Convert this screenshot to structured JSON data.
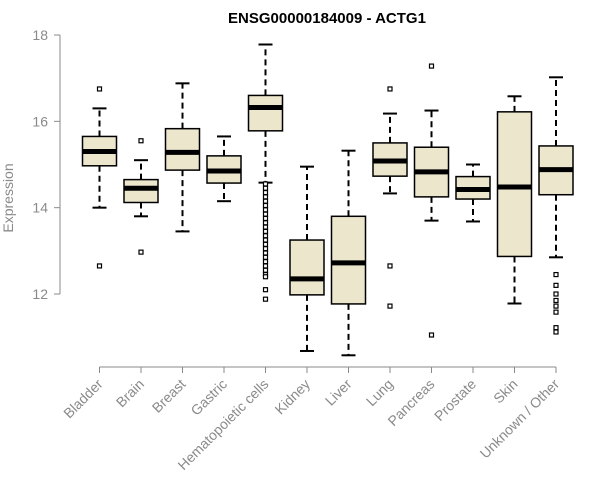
{
  "chart_data": {
    "type": "boxplot",
    "title": "ENSG00000184009 - ACTG1",
    "ylabel": "Expression",
    "xlabel": "",
    "ylim": [
      10.5,
      18
    ],
    "yticks": [
      12,
      14,
      16,
      18
    ],
    "colors": {
      "box_fill": "#ece6cd",
      "box_stroke": "#000000",
      "median": "#000000",
      "axis": "#8a8a8a",
      "tick_text": "#8a8a8a"
    },
    "categories": [
      "Bladder",
      "Brain",
      "Breast",
      "Gastric",
      "Hematopoietic cells",
      "Kidney",
      "Liver",
      "Lung",
      "Pancreas",
      "Prostate",
      "Skin",
      "Unknown / Other"
    ],
    "boxes": [
      {
        "name": "Bladder",
        "whisker_low": 14.0,
        "q1": 14.97,
        "median": 15.3,
        "q3": 15.65,
        "whisker_high": 16.3,
        "outliers": [
          16.75,
          12.65
        ]
      },
      {
        "name": "Brain",
        "whisker_low": 13.8,
        "q1": 14.12,
        "median": 14.45,
        "q3": 14.65,
        "whisker_high": 15.1,
        "outliers": [
          15.55,
          12.97
        ]
      },
      {
        "name": "Breast",
        "whisker_low": 13.45,
        "q1": 14.87,
        "median": 15.28,
        "q3": 15.83,
        "whisker_high": 16.88,
        "outliers": []
      },
      {
        "name": "Gastric",
        "whisker_low": 14.15,
        "q1": 14.57,
        "median": 14.85,
        "q3": 15.2,
        "whisker_high": 15.65,
        "outliers": []
      },
      {
        "name": "Hematopoietic cells",
        "whisker_low": 14.58,
        "q1": 15.78,
        "median": 16.32,
        "q3": 16.6,
        "whisker_high": 17.78,
        "outliers": [
          14.55,
          14.45,
          14.35,
          14.25,
          14.15,
          14.05,
          13.95,
          13.85,
          13.75,
          13.65,
          13.55,
          13.45,
          13.35,
          13.25,
          13.15,
          13.05,
          12.95,
          12.85,
          12.75,
          12.65,
          12.55,
          12.45,
          12.4,
          12.1,
          11.88
        ]
      },
      {
        "name": "Kidney",
        "whisker_low": 10.68,
        "q1": 11.98,
        "median": 12.35,
        "q3": 13.25,
        "whisker_high": 14.95,
        "outliers": []
      },
      {
        "name": "Liver",
        "whisker_low": 10.58,
        "q1": 11.77,
        "median": 12.72,
        "q3": 13.8,
        "whisker_high": 15.32,
        "outliers": []
      },
      {
        "name": "Lung",
        "whisker_low": 14.33,
        "q1": 14.73,
        "median": 15.08,
        "q3": 15.5,
        "whisker_high": 16.18,
        "outliers": [
          16.75,
          12.65,
          11.72
        ]
      },
      {
        "name": "Pancreas",
        "whisker_low": 13.7,
        "q1": 14.25,
        "median": 14.83,
        "q3": 15.4,
        "whisker_high": 16.25,
        "outliers": [
          17.28,
          11.05
        ]
      },
      {
        "name": "Prostate",
        "whisker_low": 13.68,
        "q1": 14.2,
        "median": 14.42,
        "q3": 14.72,
        "whisker_high": 15.0,
        "outliers": []
      },
      {
        "name": "Skin",
        "whisker_low": 11.78,
        "q1": 12.87,
        "median": 14.48,
        "q3": 16.22,
        "whisker_high": 16.58,
        "outliers": []
      },
      {
        "name": "Unknown / Other",
        "whisker_low": 12.85,
        "q1": 14.3,
        "median": 14.88,
        "q3": 15.43,
        "whisker_high": 17.02,
        "outliers": [
          12.45,
          12.2,
          12.0,
          11.85,
          11.72,
          11.58,
          11.22,
          11.12
        ]
      }
    ]
  }
}
